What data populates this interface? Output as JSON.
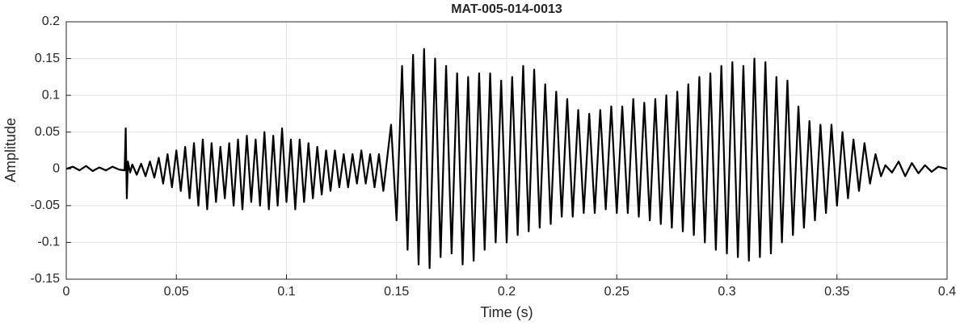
{
  "chart_data": {
    "type": "line",
    "title": "MAT-005-014-0013",
    "x_label": "Time (s)",
    "y_label": "Amplitude",
    "color": "#000000",
    "grid": true,
    "xlim": [
      0,
      0.4
    ],
    "xticks": [
      0,
      0.05,
      0.1,
      0.15,
      0.2,
      0.25,
      0.3,
      0.35,
      0.4
    ],
    "ylim": [
      -0.15,
      0.2
    ],
    "yticks": [
      -0.15,
      -0.1,
      -0.05,
      0,
      0.05,
      0.1,
      0.15,
      0.2
    ],
    "x": [
      0,
      0.003,
      0.006,
      0.009,
      0.012,
      0.015,
      0.018,
      0.021,
      0.024,
      0.0265,
      0.027,
      0.0275,
      0.028,
      0.029,
      0.03,
      0.032,
      0.034,
      0.036,
      0.038,
      0.04,
      0.042,
      0.044,
      0.046,
      0.048,
      0.05,
      0.052,
      0.054,
      0.056,
      0.058,
      0.06,
      0.062,
      0.064,
      0.066,
      0.068,
      0.07,
      0.072,
      0.074,
      0.076,
      0.078,
      0.08,
      0.082,
      0.084,
      0.086,
      0.088,
      0.09,
      0.092,
      0.094,
      0.096,
      0.098,
      0.1,
      0.102,
      0.104,
      0.106,
      0.108,
      0.11,
      0.112,
      0.114,
      0.116,
      0.118,
      0.12,
      0.122,
      0.124,
      0.126,
      0.128,
      0.13,
      0.132,
      0.134,
      0.136,
      0.138,
      0.14,
      0.142,
      0.144,
      0.1475,
      0.15,
      0.1525,
      0.155,
      0.1575,
      0.16,
      0.1625,
      0.165,
      0.1675,
      0.17,
      0.1725,
      0.175,
      0.1775,
      0.18,
      0.1825,
      0.185,
      0.1875,
      0.19,
      0.1925,
      0.195,
      0.1975,
      0.2,
      0.2025,
      0.205,
      0.2075,
      0.21,
      0.2125,
      0.215,
      0.2175,
      0.22,
      0.2225,
      0.225,
      0.2275,
      0.23,
      0.2325,
      0.235,
      0.2375,
      0.24,
      0.2425,
      0.245,
      0.2475,
      0.25,
      0.2525,
      0.255,
      0.2575,
      0.26,
      0.2625,
      0.265,
      0.2675,
      0.27,
      0.2725,
      0.275,
      0.2775,
      0.28,
      0.2825,
      0.285,
      0.2875,
      0.29,
      0.2925,
      0.295,
      0.2975,
      0.3,
      0.3025,
      0.305,
      0.3075,
      0.31,
      0.3125,
      0.315,
      0.3175,
      0.32,
      0.3225,
      0.325,
      0.3275,
      0.33,
      0.3325,
      0.335,
      0.3375,
      0.34,
      0.3425,
      0.345,
      0.3475,
      0.35,
      0.3525,
      0.355,
      0.3575,
      0.36,
      0.3625,
      0.365,
      0.3675,
      0.37,
      0.372,
      0.375,
      0.378,
      0.381,
      0.384,
      0.387,
      0.39,
      0.393,
      0.396,
      0.4
    ],
    "values": [
      0,
      0.003,
      -0.002,
      0.004,
      -0.003,
      0.002,
      -0.002,
      0.003,
      -0.001,
      -0.002,
      0.055,
      -0.04,
      0.01,
      -0.005,
      0.006,
      -0.008,
      0.007,
      -0.01,
      0.01,
      -0.012,
      0.015,
      -0.02,
      0.02,
      -0.025,
      0.025,
      -0.03,
      0.03,
      -0.04,
      0.035,
      -0.05,
      0.04,
      -0.055,
      0.035,
      -0.045,
      0.03,
      -0.04,
      0.035,
      -0.05,
      0.04,
      -0.055,
      0.045,
      -0.045,
      0.04,
      -0.05,
      0.05,
      -0.055,
      0.045,
      -0.05,
      0.055,
      -0.045,
      0.04,
      -0.055,
      0.04,
      -0.045,
      0.035,
      -0.04,
      0.03,
      -0.035,
      0.025,
      -0.03,
      0.025,
      -0.025,
      0.02,
      -0.025,
      0.02,
      -0.02,
      0.025,
      -0.02,
      0.02,
      -0.025,
      0.02,
      -0.03,
      0.06,
      -0.07,
      0.14,
      -0.11,
      0.155,
      -0.13,
      0.163,
      -0.135,
      0.15,
      -0.12,
      0.14,
      -0.115,
      0.13,
      -0.13,
      0.125,
      -0.125,
      0.13,
      -0.11,
      0.13,
      -0.1,
      0.12,
      -0.1,
      0.125,
      -0.09,
      0.14,
      -0.085,
      0.135,
      -0.08,
      0.115,
      -0.075,
      0.105,
      -0.065,
      0.095,
      -0.065,
      0.08,
      -0.06,
      0.075,
      -0.06,
      0.08,
      -0.055,
      0.085,
      -0.06,
      0.085,
      -0.06,
      0.095,
      -0.065,
      0.09,
      -0.07,
      0.095,
      -0.075,
      0.1,
      -0.08,
      0.105,
      -0.085,
      0.115,
      -0.09,
      0.125,
      -0.1,
      0.13,
      -0.11,
      0.14,
      -0.115,
      0.145,
      -0.12,
      0.14,
      -0.125,
      0.15,
      -0.12,
      0.145,
      -0.115,
      0.125,
      -0.1,
      0.12,
      -0.09,
      0.085,
      -0.08,
      0.065,
      -0.07,
      0.06,
      -0.06,
      0.06,
      -0.05,
      0.05,
      -0.04,
      0.04,
      -0.03,
      0.035,
      -0.02,
      0.02,
      -0.01,
      0.005,
      -0.005,
      0.01,
      -0.01,
      0.008,
      -0.006,
      0.005,
      -0.004,
      0.003,
      0
    ]
  }
}
